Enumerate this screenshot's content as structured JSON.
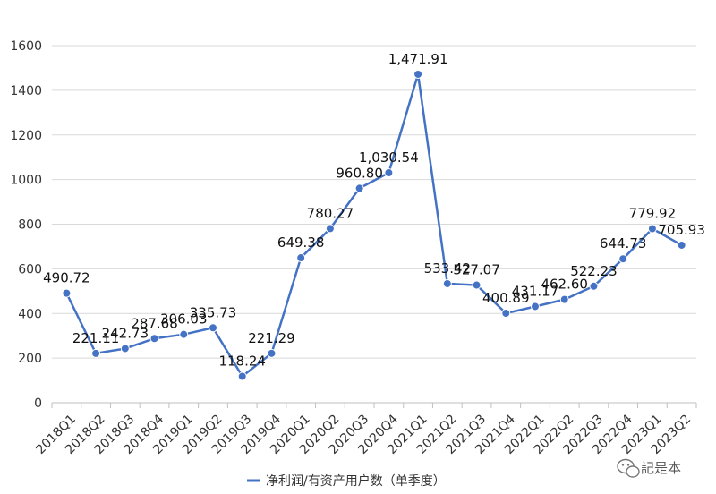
{
  "chart_data": {
    "type": "line",
    "categories": [
      "2018Q1",
      "2018Q2",
      "2018Q3",
      "2018Q4",
      "2019Q1",
      "2019Q2",
      "2019Q3",
      "2019Q4",
      "2020Q1",
      "2020Q2",
      "2020Q3",
      "2020Q4",
      "2021Q1",
      "2021Q2",
      "2021Q3",
      "2021Q4",
      "2022Q1",
      "2022Q2",
      "2022Q3",
      "2022Q4",
      "2023Q1",
      "2023Q2"
    ],
    "series": [
      {
        "name": "净利润/有资产用户数（单季度）",
        "values": [
          490.72,
          221.11,
          242.73,
          287.68,
          306.03,
          335.73,
          118.24,
          221.29,
          649.38,
          780.27,
          960.8,
          1030.54,
          1471.91,
          533.42,
          527.07,
          400.89,
          431.17,
          462.6,
          522.23,
          644.73,
          779.92,
          705.93
        ],
        "labels": [
          "490.72",
          "221.11",
          "242.73",
          "287.68",
          "306.03",
          "335.73",
          "118.24",
          "221.29",
          "649.38",
          "780.27",
          "960.80",
          "1,030.54",
          "1,471.91",
          "533.42",
          "527.07",
          "400.89",
          "431.17",
          "462.60",
          "522.23",
          "644.73",
          "779.92",
          "705.93"
        ],
        "color": "#4472c4"
      }
    ],
    "yticks": [
      "0",
      "200",
      "400",
      "600",
      "800",
      "1000",
      "1200",
      "1400",
      "1600"
    ],
    "ylim": [
      0,
      1600
    ],
    "grid": true,
    "legend_position": "bottom",
    "title": "",
    "xlabel": "",
    "ylabel": ""
  },
  "watermark": {
    "text": "記是本",
    "icon": "wechat-icon"
  }
}
